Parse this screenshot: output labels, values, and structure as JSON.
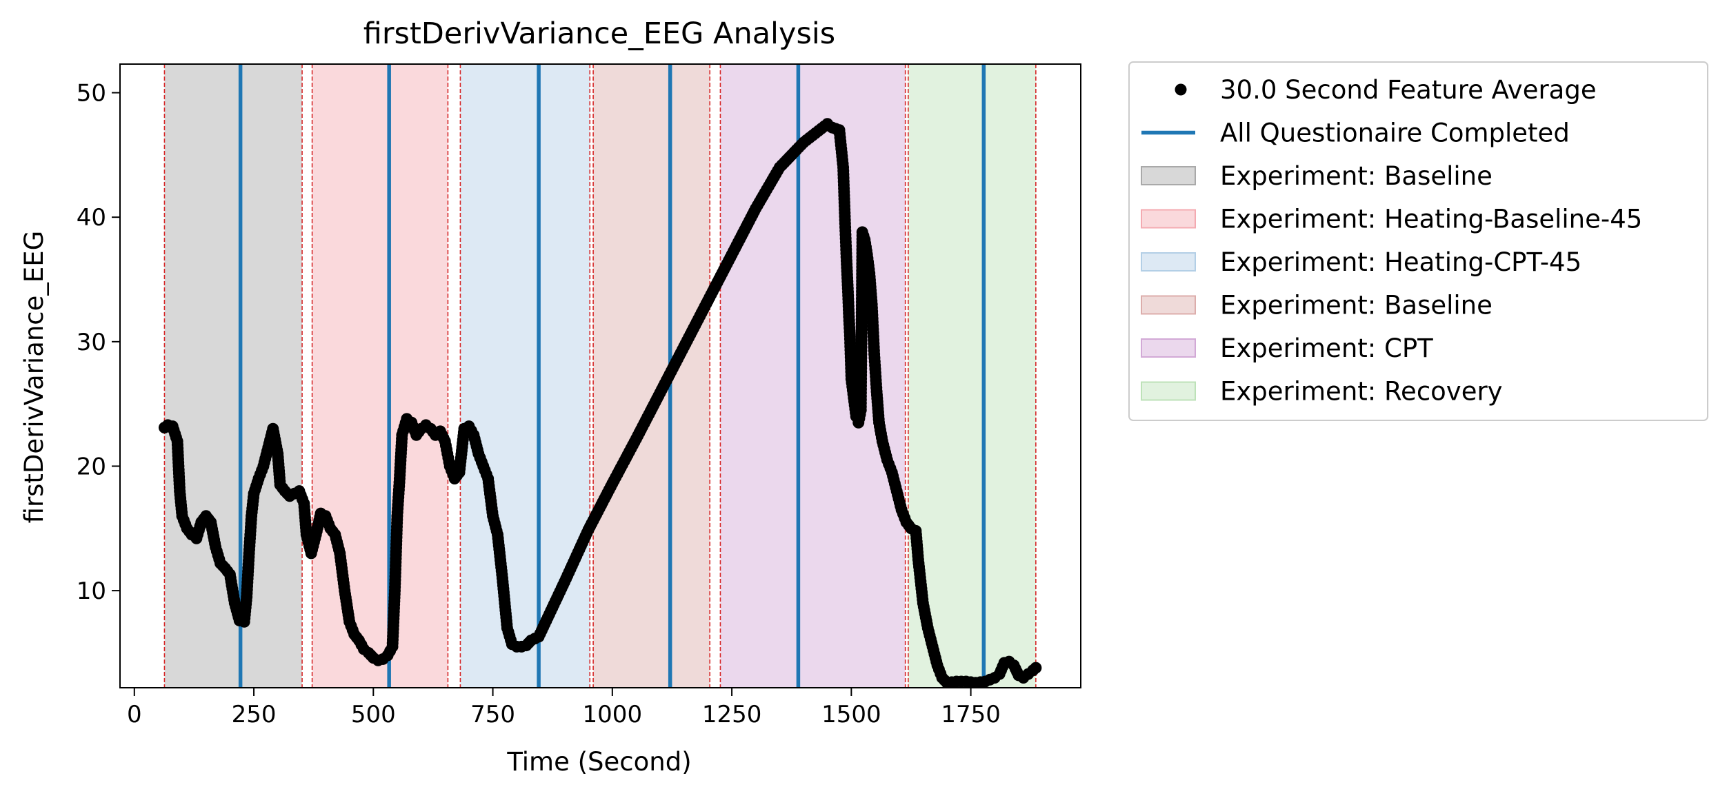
{
  "chart_data": {
    "type": "scatter",
    "title": "firstDerivVariance_EEG Analysis",
    "xlabel": "Time (Second)",
    "ylabel": "firstDerivVariance_EEG",
    "xlim": [
      -30,
      1980
    ],
    "ylim": [
      2.2,
      52.3
    ],
    "xticks": [
      0,
      250,
      500,
      750,
      1000,
      1250,
      1500,
      1750
    ],
    "yticks": [
      10,
      20,
      30,
      40,
      50
    ],
    "legend_position": "outside-right-top",
    "regions": [
      {
        "label": "Experiment: Baseline",
        "x0": 63,
        "x1": 351,
        "color": "#a9a9a9"
      },
      {
        "label": "Experiment: Heating-Baseline-45",
        "x0": 372,
        "x1": 656,
        "color": "#f4aab1"
      },
      {
        "label": "Experiment: Heating-CPT-45",
        "x0": 682,
        "x1": 953,
        "color": "#b3cfe6"
      },
      {
        "label": "Experiment: Baseline",
        "x0": 960,
        "x1": 1204,
        "color": "#dcadab"
      },
      {
        "label": "Experiment: CPT",
        "x0": 1226,
        "x1": 1613,
        "color": "#d2a9d6"
      },
      {
        "label": "Experiment: Recovery",
        "x0": 1619,
        "x1": 1886,
        "color": "#bde2b8"
      }
    ],
    "boundary_lines": [
      63,
      351,
      372,
      656,
      682,
      953,
      960,
      1204,
      1226,
      1613,
      1619,
      1886
    ],
    "questionnaire_lines": [
      222,
      533,
      846,
      1121,
      1389,
      1777
    ],
    "series": [
      {
        "name": "30.0 Second Feature Average",
        "marker": "circle",
        "color": "#000000",
        "points": [
          [
            63,
            23.1
          ],
          [
            70,
            23.3
          ],
          [
            80,
            23.2
          ],
          [
            90,
            22.0
          ],
          [
            95,
            18.0
          ],
          [
            100,
            16.0
          ],
          [
            110,
            15.0
          ],
          [
            120,
            14.5
          ],
          [
            130,
            14.2
          ],
          [
            140,
            15.5
          ],
          [
            150,
            16.0
          ],
          [
            160,
            15.5
          ],
          [
            170,
            13.5
          ],
          [
            180,
            12.2
          ],
          [
            190,
            11.8
          ],
          [
            200,
            11.3
          ],
          [
            210,
            9.0
          ],
          [
            220,
            7.6
          ],
          [
            230,
            7.5
          ],
          [
            235,
            9.5
          ],
          [
            240,
            13.0
          ],
          [
            245,
            16.0
          ],
          [
            250,
            17.8
          ],
          [
            260,
            19.0
          ],
          [
            270,
            20.0
          ],
          [
            280,
            21.5
          ],
          [
            290,
            23.0
          ],
          [
            300,
            21.0
          ],
          [
            305,
            18.5
          ],
          [
            315,
            18.0
          ],
          [
            325,
            17.6
          ],
          [
            335,
            17.8
          ],
          [
            345,
            18.0
          ],
          [
            355,
            17.0
          ],
          [
            360,
            14.5
          ],
          [
            370,
            13.0
          ],
          [
            380,
            14.5
          ],
          [
            390,
            16.2
          ],
          [
            400,
            16.0
          ],
          [
            410,
            15.0
          ],
          [
            420,
            14.5
          ],
          [
            430,
            13.0
          ],
          [
            440,
            10.0
          ],
          [
            450,
            7.5
          ],
          [
            460,
            6.5
          ],
          [
            470,
            6.0
          ],
          [
            480,
            5.3
          ],
          [
            490,
            5.0
          ],
          [
            500,
            4.6
          ],
          [
            510,
            4.4
          ],
          [
            520,
            4.5
          ],
          [
            530,
            4.8
          ],
          [
            540,
            5.5
          ],
          [
            545,
            10.0
          ],
          [
            550,
            16.0
          ],
          [
            555,
            19.0
          ],
          [
            560,
            22.5
          ],
          [
            570,
            23.8
          ],
          [
            580,
            23.5
          ],
          [
            590,
            22.5
          ],
          [
            600,
            23.0
          ],
          [
            610,
            23.3
          ],
          [
            620,
            23.0
          ],
          [
            630,
            22.5
          ],
          [
            640,
            22.8
          ],
          [
            650,
            22.0
          ],
          [
            655,
            21.0
          ],
          [
            660,
            20.0
          ],
          [
            670,
            19.0
          ],
          [
            680,
            19.5
          ],
          [
            690,
            23.0
          ],
          [
            700,
            23.2
          ],
          [
            710,
            22.5
          ],
          [
            720,
            21.0
          ],
          [
            730,
            20.0
          ],
          [
            740,
            19.0
          ],
          [
            750,
            16.0
          ],
          [
            760,
            14.5
          ],
          [
            770,
            11.0
          ],
          [
            780,
            7.0
          ],
          [
            790,
            5.7
          ],
          [
            800,
            5.5
          ],
          [
            810,
            5.5
          ],
          [
            820,
            5.6
          ],
          [
            830,
            6.0
          ],
          [
            846,
            6.3
          ],
          [
            900,
            10.7
          ],
          [
            950,
            14.9
          ],
          [
            1000,
            18.6
          ],
          [
            1050,
            22.2
          ],
          [
            1100,
            25.9
          ],
          [
            1150,
            29.6
          ],
          [
            1200,
            33.3
          ],
          [
            1250,
            37.0
          ],
          [
            1300,
            40.7
          ],
          [
            1350,
            44.0
          ],
          [
            1400,
            46.0
          ],
          [
            1450,
            47.5
          ],
          [
            1460,
            47.2
          ],
          [
            1475,
            47.0
          ],
          [
            1483,
            44.0
          ],
          [
            1487,
            39.5
          ],
          [
            1490,
            36.5
          ],
          [
            1493,
            34.0
          ],
          [
            1495,
            32.0
          ],
          [
            1497,
            30.5
          ],
          [
            1500,
            27.0
          ],
          [
            1505,
            25.5
          ],
          [
            1510,
            24.0
          ],
          [
            1515,
            23.5
          ],
          [
            1520,
            24.5
          ],
          [
            1523,
            38.8
          ],
          [
            1528,
            38.2
          ],
          [
            1533,
            37.0
          ],
          [
            1538,
            35.5
          ],
          [
            1543,
            33.0
          ],
          [
            1548,
            29.0
          ],
          [
            1553,
            26.0
          ],
          [
            1558,
            23.5
          ],
          [
            1565,
            22.0
          ],
          [
            1575,
            20.5
          ],
          [
            1585,
            19.5
          ],
          [
            1595,
            18.0
          ],
          [
            1605,
            16.5
          ],
          [
            1615,
            15.5
          ],
          [
            1625,
            15.0
          ],
          [
            1635,
            14.8
          ],
          [
            1640,
            12.5
          ],
          [
            1650,
            9.0
          ],
          [
            1660,
            7.0
          ],
          [
            1670,
            5.5
          ],
          [
            1680,
            4.0
          ],
          [
            1690,
            3.0
          ],
          [
            1700,
            2.6
          ],
          [
            1720,
            2.7
          ],
          [
            1740,
            2.7
          ],
          [
            1760,
            2.6
          ],
          [
            1780,
            2.7
          ],
          [
            1800,
            3.0
          ],
          [
            1810,
            3.3
          ],
          [
            1820,
            4.2
          ],
          [
            1830,
            4.3
          ],
          [
            1840,
            4.0
          ],
          [
            1850,
            3.2
          ],
          [
            1860,
            3.0
          ],
          [
            1870,
            3.3
          ],
          [
            1880,
            3.6
          ],
          [
            1886,
            3.8
          ]
        ]
      }
    ],
    "legend": [
      {
        "label": "30.0 Second Feature Average",
        "kind": "marker",
        "color": "#000000"
      },
      {
        "label": "All Questionaire Completed",
        "kind": "line",
        "color": "#1f77b4"
      },
      {
        "label": "Experiment: Baseline",
        "kind": "patch",
        "color": "#a9a9a9"
      },
      {
        "label": "Experiment: Heating-Baseline-45",
        "kind": "patch",
        "color": "#f4aab1"
      },
      {
        "label": "Experiment: Heating-CPT-45",
        "kind": "patch",
        "color": "#b3cfe6"
      },
      {
        "label": "Experiment: Baseline",
        "kind": "patch",
        "color": "#dcadab"
      },
      {
        "label": "Experiment: CPT",
        "kind": "patch",
        "color": "#d2a9d6"
      },
      {
        "label": "Experiment: Recovery",
        "kind": "patch",
        "color": "#bde2b8"
      }
    ],
    "colors": {
      "questionnaire_line": "#1f77b4",
      "boundary_line": "#d62728",
      "marker": "#000000"
    }
  }
}
